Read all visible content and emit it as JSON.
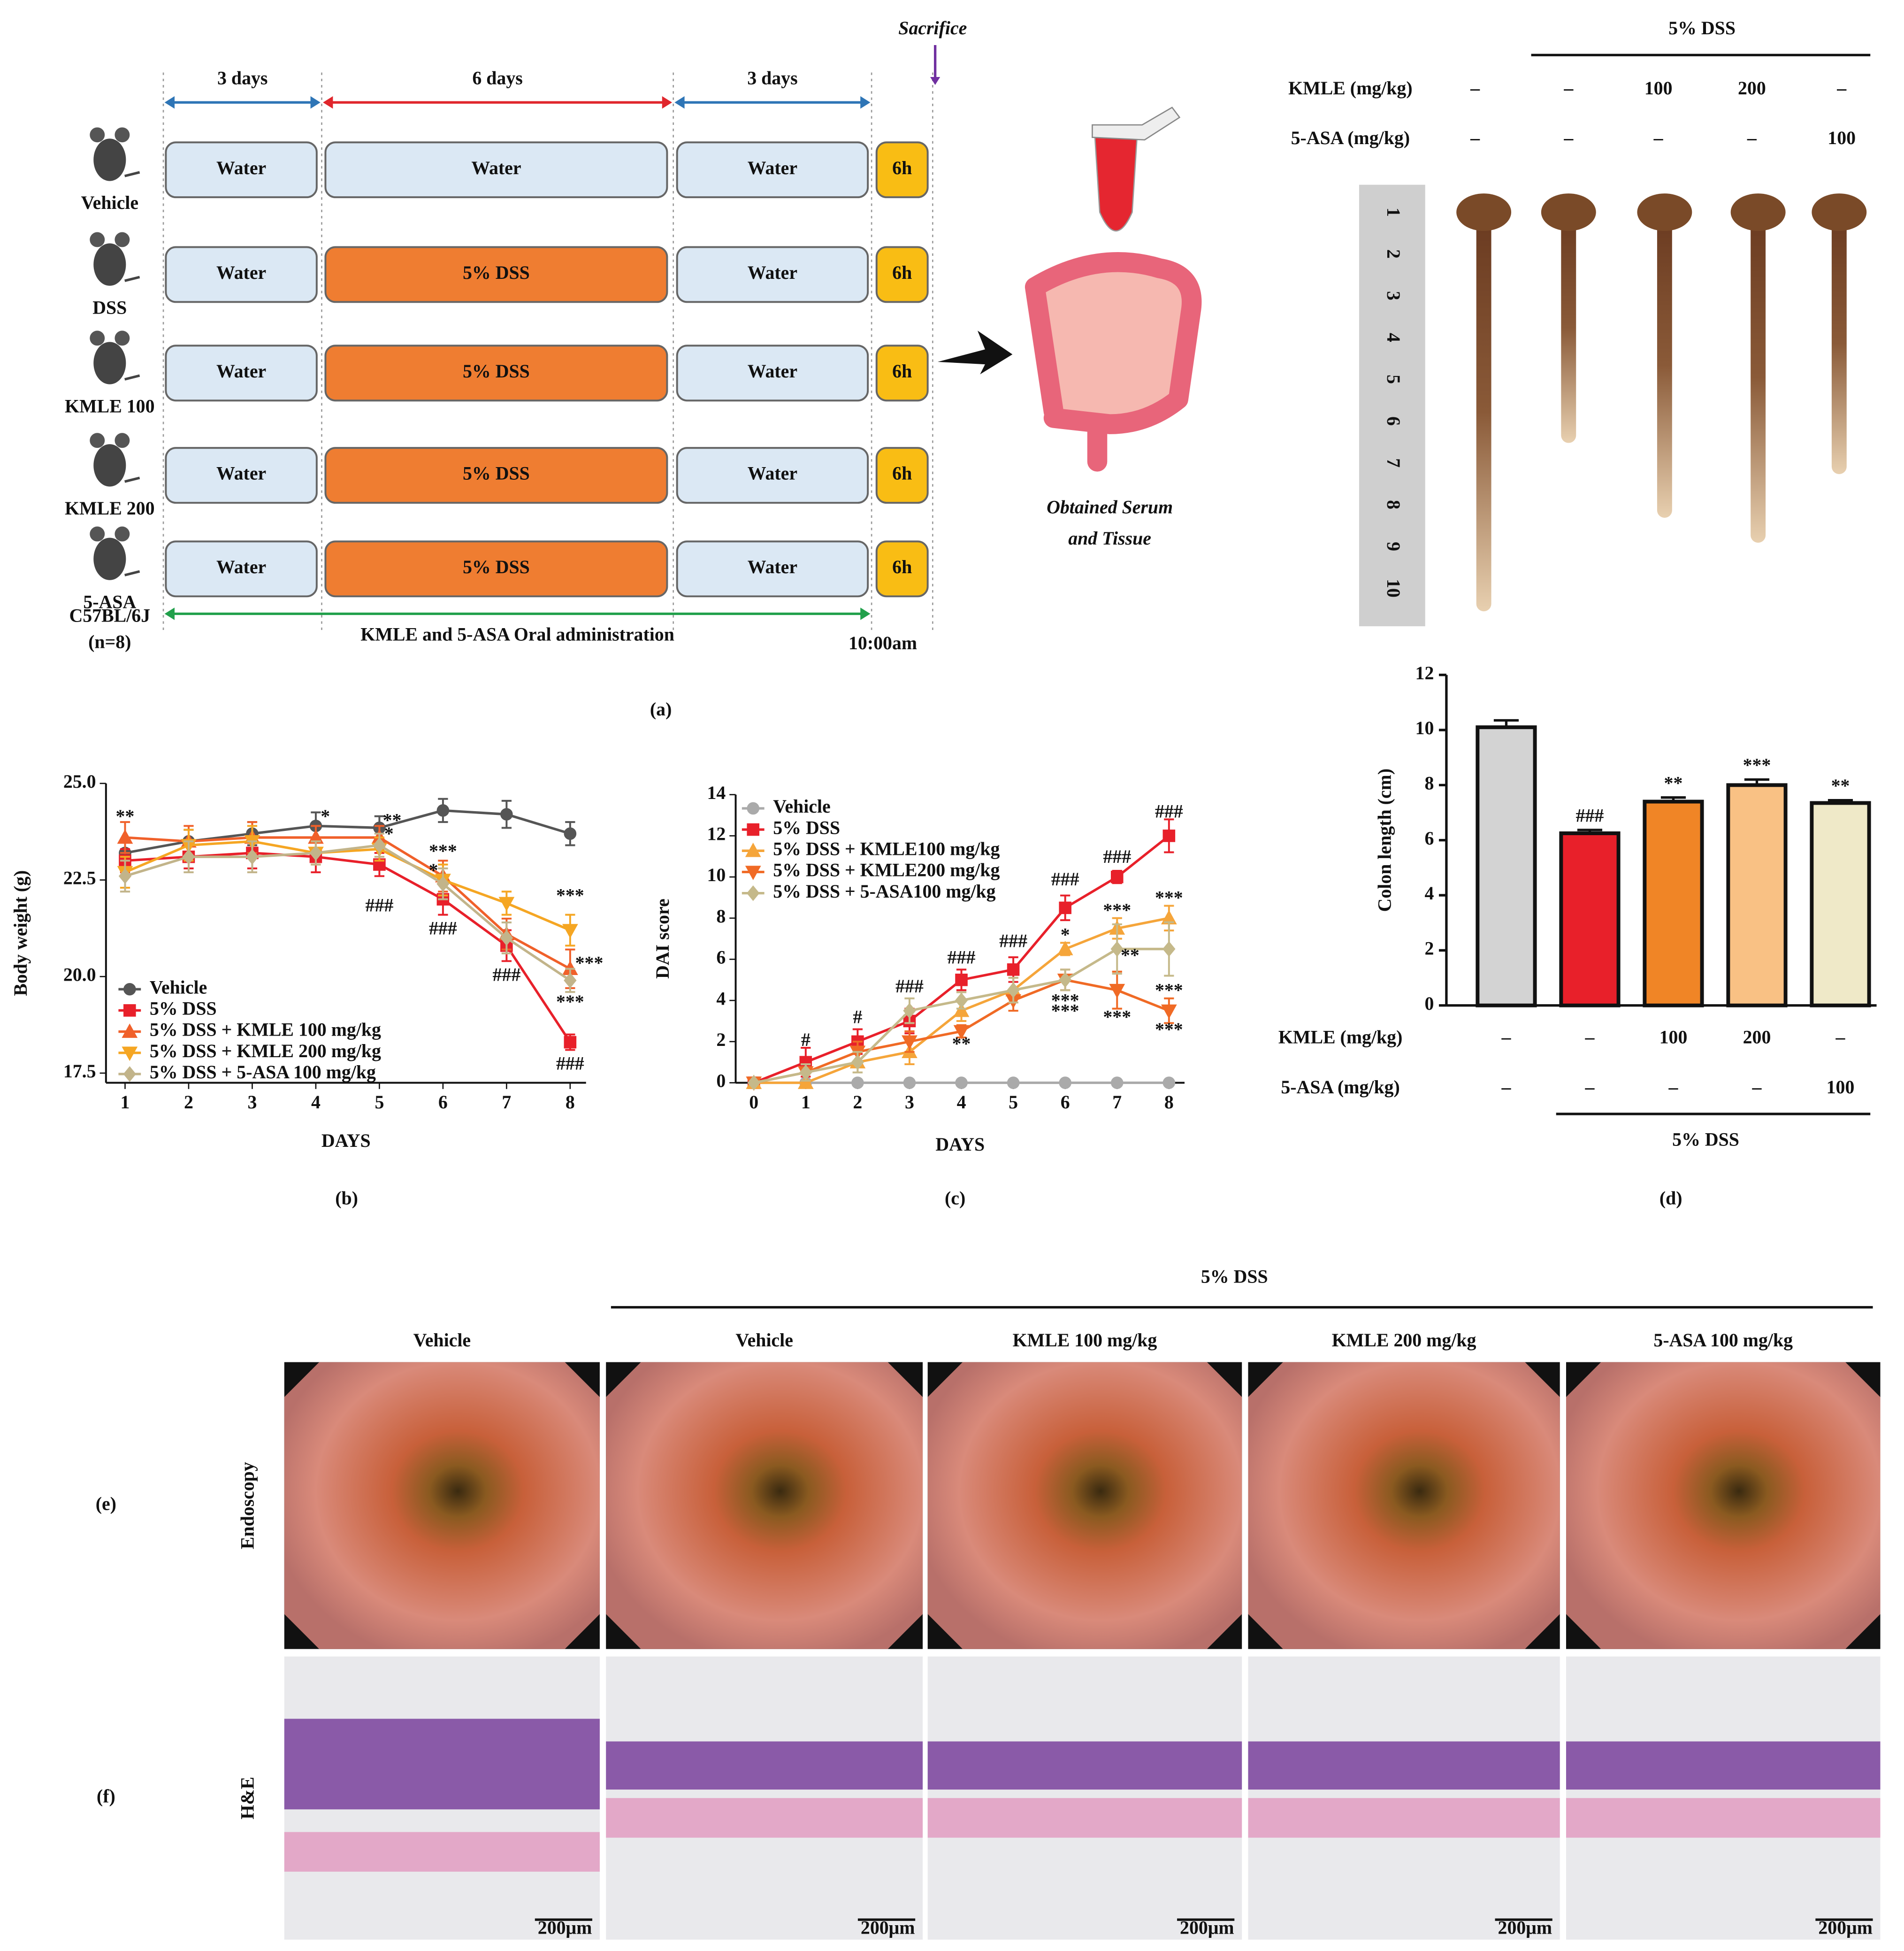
{
  "panel_a": {
    "label": "(a)",
    "sacrifice": "Sacrifice",
    "phases": [
      "3 days",
      "6 days",
      "3 days"
    ],
    "groups": [
      {
        "name": "Vehicle",
        "steps": [
          "Water",
          "Water",
          "Water",
          "6h"
        ]
      },
      {
        "name": "DSS",
        "steps": [
          "Water",
          "5% DSS",
          "Water",
          "6h"
        ]
      },
      {
        "name": "KMLE 100",
        "steps": [
          "Water",
          "5% DSS",
          "Water",
          "6h"
        ]
      },
      {
        "name": "KMLE 200",
        "steps": [
          "Water",
          "5% DSS",
          "Water",
          "6h"
        ]
      },
      {
        "name": "5-ASA",
        "steps": [
          "Water",
          "5% DSS",
          "Water",
          "6h"
        ]
      }
    ],
    "strain": "C57BL/6J",
    "n": "(n=8)",
    "administration": "KMLE and 5-ASA Oral administration",
    "time": "10:00am",
    "outcome": [
      "Obtained Serum",
      "and Tissue"
    ]
  },
  "colon_photo": {
    "group": "5% DSS",
    "rows": [
      {
        "name": "KMLE (mg/kg)",
        "values": [
          "–",
          "–",
          "100",
          "200",
          "–"
        ]
      },
      {
        "name": "5-ASA (mg/kg)",
        "values": [
          "–",
          "–",
          "–",
          "–",
          "100"
        ]
      }
    ],
    "ruler": [
      "1",
      "2",
      "3",
      "4",
      "5",
      "6",
      "7",
      "8",
      "9",
      "10"
    ]
  },
  "chart_data": [
    {
      "type": "line",
      "panel_label": "(b)",
      "xlabel": "DAYS",
      "ylabel": "Body weight (g)",
      "x": [
        1,
        2,
        3,
        4,
        5,
        6,
        7,
        8
      ],
      "xlim": [
        0.7,
        8.25
      ],
      "xticks": [
        1,
        2,
        3,
        4,
        5,
        6,
        7,
        8
      ],
      "ylim": [
        17.25,
        25
      ],
      "yticks": [
        {
          "value": 17.5,
          "label": "17.5"
        },
        {
          "value": 20,
          "label": "20.0"
        },
        {
          "value": 22.5,
          "label": "22.5"
        },
        {
          "value": 25,
          "label": "25.0"
        }
      ],
      "series": [
        {
          "name": "Vehicle",
          "color": "#555555",
          "marker": "circle",
          "values": [
            23.2,
            23.5,
            23.7,
            23.9,
            23.85,
            24.3,
            24.2,
            23.7
          ],
          "errors": [
            0.3,
            0.3,
            0.3,
            0.35,
            0.3,
            0.3,
            0.35,
            0.3
          ]
        },
        {
          "name": "5% DSS",
          "color": "#e8202a",
          "marker": "square",
          "values": [
            23.0,
            23.1,
            23.2,
            23.1,
            22.9,
            22.0,
            20.8,
            18.3
          ],
          "errors": [
            0.3,
            0.3,
            0.4,
            0.4,
            0.3,
            0.4,
            0.4,
            0.2
          ]
        },
        {
          "name": "5% DSS + KMLE 100 mg/kg",
          "color": "#f0602a",
          "marker": "triangle-up",
          "values": [
            23.6,
            23.5,
            23.6,
            23.6,
            23.6,
            22.6,
            21.1,
            20.2
          ],
          "errors": [
            0.4,
            0.4,
            0.4,
            0.3,
            0.3,
            0.4,
            0.4,
            0.5
          ]
        },
        {
          "name": "5% DSS + KMLE 200 mg/kg",
          "color": "#f5a623",
          "marker": "triangle-down",
          "values": [
            22.7,
            23.4,
            23.5,
            23.2,
            23.3,
            22.5,
            21.9,
            21.2
          ],
          "errors": [
            0.4,
            0.4,
            0.4,
            0.3,
            0.3,
            0.4,
            0.3,
            0.4
          ]
        },
        {
          "name": "5% DSS + 5-ASA 100 mg/kg",
          "color": "#c2b48a",
          "marker": "diamond",
          "values": [
            22.6,
            23.1,
            23.1,
            23.2,
            23.4,
            22.4,
            21.0,
            19.9
          ],
          "errors": [
            0.4,
            0.4,
            0.4,
            0.3,
            0.3,
            0.4,
            0.4,
            0.3
          ]
        }
      ],
      "annotations": [
        {
          "text": "**",
          "x": 1,
          "y": 24.1
        },
        {
          "text": "*",
          "x": 4.15,
          "y": 24.1
        },
        {
          "text": "**",
          "x": 5.2,
          "y": 24.0
        },
        {
          "text": "*",
          "x": 5.15,
          "y": 23.65
        },
        {
          "text": "###",
          "x": 5,
          "y": 21.8
        },
        {
          "text": "***",
          "x": 6,
          "y": 23.2
        },
        {
          "text": "*",
          "x": 5.85,
          "y": 22.7
        },
        {
          "text": "###",
          "x": 6,
          "y": 21.2
        },
        {
          "text": "###",
          "x": 7,
          "y": 20.0
        },
        {
          "text": "***",
          "x": 8,
          "y": 22.05
        },
        {
          "text": "***",
          "x": 8.3,
          "y": 20.3
        },
        {
          "text": "***",
          "x": 8,
          "y": 19.3
        },
        {
          "text": "###",
          "x": 8,
          "y": 17.7
        }
      ]
    },
    {
      "type": "line",
      "panel_label": "(c)",
      "xlabel": "DAYS",
      "ylabel": "DAI score",
      "x": [
        0,
        1,
        2,
        3,
        4,
        5,
        6,
        7,
        8
      ],
      "xlim": [
        -0.35,
        8.3
      ],
      "xticks": [
        0,
        1,
        2,
        3,
        4,
        5,
        6,
        7,
        8
      ],
      "ylim": [
        0,
        14
      ],
      "yticks": [
        0,
        2,
        4,
        6,
        8,
        10,
        12,
        14
      ],
      "series": [
        {
          "name": "Vehicle",
          "color": "#aaaaaa",
          "marker": "circle",
          "values": [
            0,
            0,
            0,
            0,
            0,
            0,
            0,
            0,
            0
          ]
        },
        {
          "name": "5% DSS",
          "color": "#e8202a",
          "marker": "square",
          "values": [
            0,
            1,
            2,
            3,
            5,
            5.5,
            8.5,
            10,
            12
          ],
          "errors": [
            0,
            0.7,
            0.6,
            0.6,
            0.5,
            0.6,
            0.6,
            0.3,
            0.8
          ]
        },
        {
          "name": "5% DSS + KMLE100 mg/kg",
          "color": "#f5a53a",
          "marker": "triangle-up",
          "values": [
            0,
            0,
            1,
            1.5,
            3.5,
            4.5,
            6.5,
            7.5,
            8
          ],
          "errors": [
            0,
            0,
            0.5,
            0.6,
            0.5,
            0.6,
            0.3,
            0.5,
            0.6
          ]
        },
        {
          "name": "5% DSS + KMLE200 mg/kg",
          "color": "#f06a25",
          "marker": "triangle-down",
          "values": [
            0,
            0.5,
            1.5,
            2,
            2.5,
            4,
            5,
            4.5,
            3.5
          ],
          "errors": [
            0,
            0.4,
            0.5,
            0.5,
            0.3,
            0.5,
            0.5,
            0.9,
            0.6
          ]
        },
        {
          "name": "5% DSS + 5-ASA100 mg/kg",
          "color": "#c5b98a",
          "marker": "diamond",
          "values": [
            0,
            0.5,
            1,
            3.5,
            4,
            4.5,
            5,
            6.5,
            6.5
          ],
          "errors": [
            0,
            0.4,
            0.5,
            0.6,
            0.4,
            0.6,
            0.5,
            1.2,
            1.3
          ]
        }
      ],
      "annotations": [
        {
          "text": "#",
          "x": 1,
          "y": 2.0
        },
        {
          "text": "#",
          "x": 2,
          "y": 3.1
        },
        {
          "text": "###",
          "x": 3,
          "y": 4.6
        },
        {
          "text": "###",
          "x": 4,
          "y": 6.0
        },
        {
          "text": "**",
          "x": 4,
          "y": 1.8
        },
        {
          "text": "###",
          "x": 5,
          "y": 6.8
        },
        {
          "text": "###",
          "x": 6,
          "y": 9.8
        },
        {
          "text": "*",
          "x": 6,
          "y": 7.1
        },
        {
          "text": "***",
          "x": 6,
          "y": 3.9
        },
        {
          "text": "***",
          "x": 6,
          "y": 3.4
        },
        {
          "text": "###",
          "x": 7,
          "y": 10.9
        },
        {
          "text": "***",
          "x": 7,
          "y": 8.3
        },
        {
          "text": "**",
          "x": 7.25,
          "y": 6.1
        },
        {
          "text": "***",
          "x": 7,
          "y": 3.1
        },
        {
          "text": "###",
          "x": 8,
          "y": 13.1
        },
        {
          "text": "***",
          "x": 8,
          "y": 8.9
        },
        {
          "text": "***",
          "x": 8,
          "y": 4.4
        },
        {
          "text": "***",
          "x": 8,
          "y": 2.5
        }
      ]
    },
    {
      "type": "bar",
      "panel_label": "(d)",
      "ylabel": "Colon length (cm)",
      "values": [
        10.1,
        6.25,
        7.4,
        8.0,
        7.35
      ],
      "errors": [
        0.25,
        0.12,
        0.15,
        0.2,
        0.1
      ],
      "colors": [
        "#d3d3d3",
        "#e8202a",
        "#f08526",
        "#f9c184",
        "#efe9c8"
      ],
      "significance": [
        null,
        "###",
        "**",
        "***",
        "**"
      ],
      "ylim": [
        0,
        12
      ],
      "yticks": [
        0,
        2,
        4,
        6,
        8,
        10,
        12
      ],
      "treatments": [
        {
          "name": "KMLE (mg/kg)",
          "values": [
            "–",
            "–",
            "100",
            "200",
            "–"
          ]
        },
        {
          "name": "5-ASA (mg/kg)",
          "values": [
            "–",
            "–",
            "–",
            "–",
            "100"
          ]
        }
      ],
      "group": "5% DSS"
    }
  ],
  "panel_ef": {
    "group": "5% DSS",
    "columns": [
      "Vehicle",
      "Vehicle",
      "KMLE 100 mg/kg",
      "KMLE 200 mg/kg",
      "5-ASA 100 mg/kg"
    ],
    "rows": [
      {
        "name": "Endoscopy",
        "label": "(e)"
      },
      {
        "name": "H&E",
        "label": "(f)"
      }
    ],
    "scale_bar": "200μm"
  }
}
